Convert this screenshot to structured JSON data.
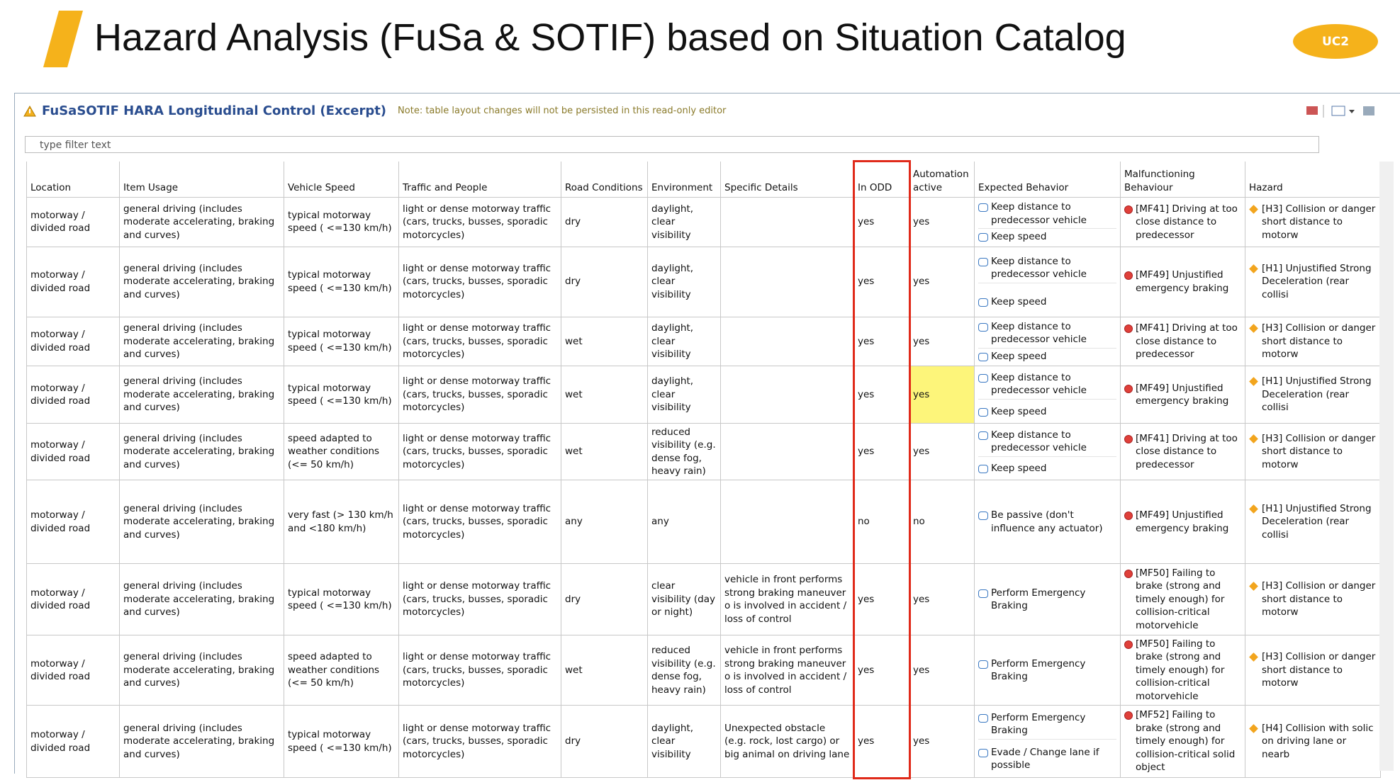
{
  "header": {
    "title": "Hazard Analysis (FuSa & SOTIF) based on Situation Catalog",
    "badge": "UC2"
  },
  "editor": {
    "title": "FuSaSOTIF HARA Longitudinal Control (Excerpt)",
    "note": "Note: table layout changes will not be persisted in this read-only editor"
  },
  "filter": {
    "placeholder": "type filter text"
  },
  "table": {
    "columns": [
      "Location",
      "Item Usage",
      "Vehicle Speed",
      "Traffic and People",
      "Road Conditions",
      "Environment",
      "Specific Details",
      "In ODD",
      "Automation active",
      "Expected Behavior",
      "Malfunctioning Behaviour",
      "Hazard"
    ],
    "rows": [
      {
        "cells": [
          "motorway / divided road",
          "general driving (includes moderate accelerating, braking and curves)",
          "typical motorway speed ( <=130 km/h)",
          "light or dense motorway traffic (cars, trucks, busses, sporadic motorcycles)",
          "dry",
          "daylight, clear visibility",
          null,
          "yes",
          "yes",
          [
            "Keep distance to predecessor vehicle",
            "Keep speed"
          ],
          "[MF41] Driving at too close distance to predecessor",
          "[H3] Collision or danger short distance to motorw"
        ]
      },
      {
        "cells": [
          "motorway / divided road",
          "general driving (includes moderate accelerating, braking and curves)",
          "typical motorway speed ( <=130 km/h)",
          "light or dense motorway traffic (cars, trucks, busses, sporadic motorcycles)",
          "dry",
          "daylight, clear visibility",
          null,
          "yes",
          "yes",
          [
            "Keep distance to predecessor vehicle",
            "Keep speed"
          ],
          "[MF49] Unjustified emergency braking",
          "[H1] Unjustified Strong Deceleration (rear collisi"
        ]
      },
      {
        "cells": [
          "motorway / divided road",
          "general driving (includes moderate accelerating, braking and curves)",
          "typical motorway speed ( <=130 km/h)",
          "light or dense motorway traffic (cars, trucks, busses, sporadic motorcycles)",
          "wet",
          "daylight, clear visibility",
          null,
          "yes",
          "yes",
          [
            "Keep distance to predecessor vehicle",
            "Keep speed"
          ],
          "[MF41] Driving at too close distance to predecessor",
          "[H3] Collision or danger short distance to motorw"
        ]
      },
      {
        "cells": [
          "motorway / divided road",
          "general driving (includes moderate accelerating, braking and curves)",
          "typical motorway speed ( <=130 km/h)",
          "light or dense motorway traffic (cars, trucks, busses, sporadic motorcycles)",
          "wet",
          "daylight, clear visibility",
          null,
          "yes",
          "yes",
          [
            "Keep distance to predecessor vehicle",
            "Keep speed"
          ],
          "[MF49] Unjustified emergency braking",
          "[H1] Unjustified Strong Deceleration (rear collisi"
        ]
      },
      {
        "cells": [
          "motorway / divided road",
          "general driving (includes moderate accelerating, braking and curves)",
          "speed adapted to weather conditions (<= 50 km/h)",
          "light or dense motorway traffic (cars, trucks, busses, sporadic motorcycles)",
          "wet",
          "reduced visibility (e.g. dense fog, heavy rain)",
          null,
          "yes",
          "yes",
          [
            "Keep distance to predecessor vehicle",
            "Keep speed"
          ],
          "[MF41] Driving at too close distance to predecessor",
          "[H3] Collision or danger short distance to motorw"
        ]
      },
      {
        "cells": [
          "motorway / divided road",
          "general driving (includes moderate accelerating, braking and curves)",
          "very fast (> 130 km/h and <180 km/h)",
          "light or dense motorway traffic (cars, trucks, busses, sporadic motorcycles)",
          "any",
          "any",
          null,
          "no",
          "no",
          [
            "Be passive (don't influence any actuator)"
          ],
          "[MF49] Unjustified emergency braking",
          "[H1] Unjustified Strong Deceleration (rear collisi"
        ]
      },
      {
        "cells": [
          "motorway / divided road",
          "general driving (includes moderate accelerating, braking and curves)",
          "typical motorway speed ( <=130 km/h)",
          "light or dense motorway traffic (cars, trucks, busses, sporadic motorcycles)",
          "dry",
          "clear visibility (day or night)",
          "vehicle in front performs strong braking maneuver o is involved in accident / loss of control",
          "yes",
          "yes",
          [
            "Perform Emergency Braking"
          ],
          "[MF50] Failing to brake (strong and timely enough) for collision-critical motorvehicle",
          "[H3] Collision or danger short distance to motorw"
        ]
      },
      {
        "cells": [
          "motorway / divided road",
          "general driving (includes moderate accelerating, braking and curves)",
          "speed adapted to weather conditions (<= 50 km/h)",
          "light or dense motorway traffic (cars, trucks, busses, sporadic motorcycles)",
          "wet",
          "reduced visibility (e.g. dense fog, heavy rain)",
          "vehicle in front performs strong braking maneuver o is involved in accident / loss of control",
          "yes",
          "yes",
          [
            "Perform Emergency Braking"
          ],
          "[MF50] Failing to brake (strong and timely enough) for collision-critical motorvehicle",
          "[H3] Collision or danger short distance to motorw"
        ]
      },
      {
        "cells": [
          "motorway / divided road",
          "general driving (includes moderate accelerating, braking and curves)",
          "typical motorway speed ( <=130 km/h)",
          "light or dense motorway traffic (cars, trucks, busses, sporadic motorcycles)",
          "dry",
          "daylight, clear visibility",
          "Unexpected obstacle (e.g. rock, lost cargo) or big animal on driving lane",
          "yes",
          "yes",
          [
            "Perform Emergency Braking",
            "Evade / Change lane if possible"
          ],
          "[MF52] Failing to brake (strong and timely enough) for collision-critical solid object",
          "[H4] Collision  with solic on driving lane or nearb"
        ]
      }
    ]
  }
}
